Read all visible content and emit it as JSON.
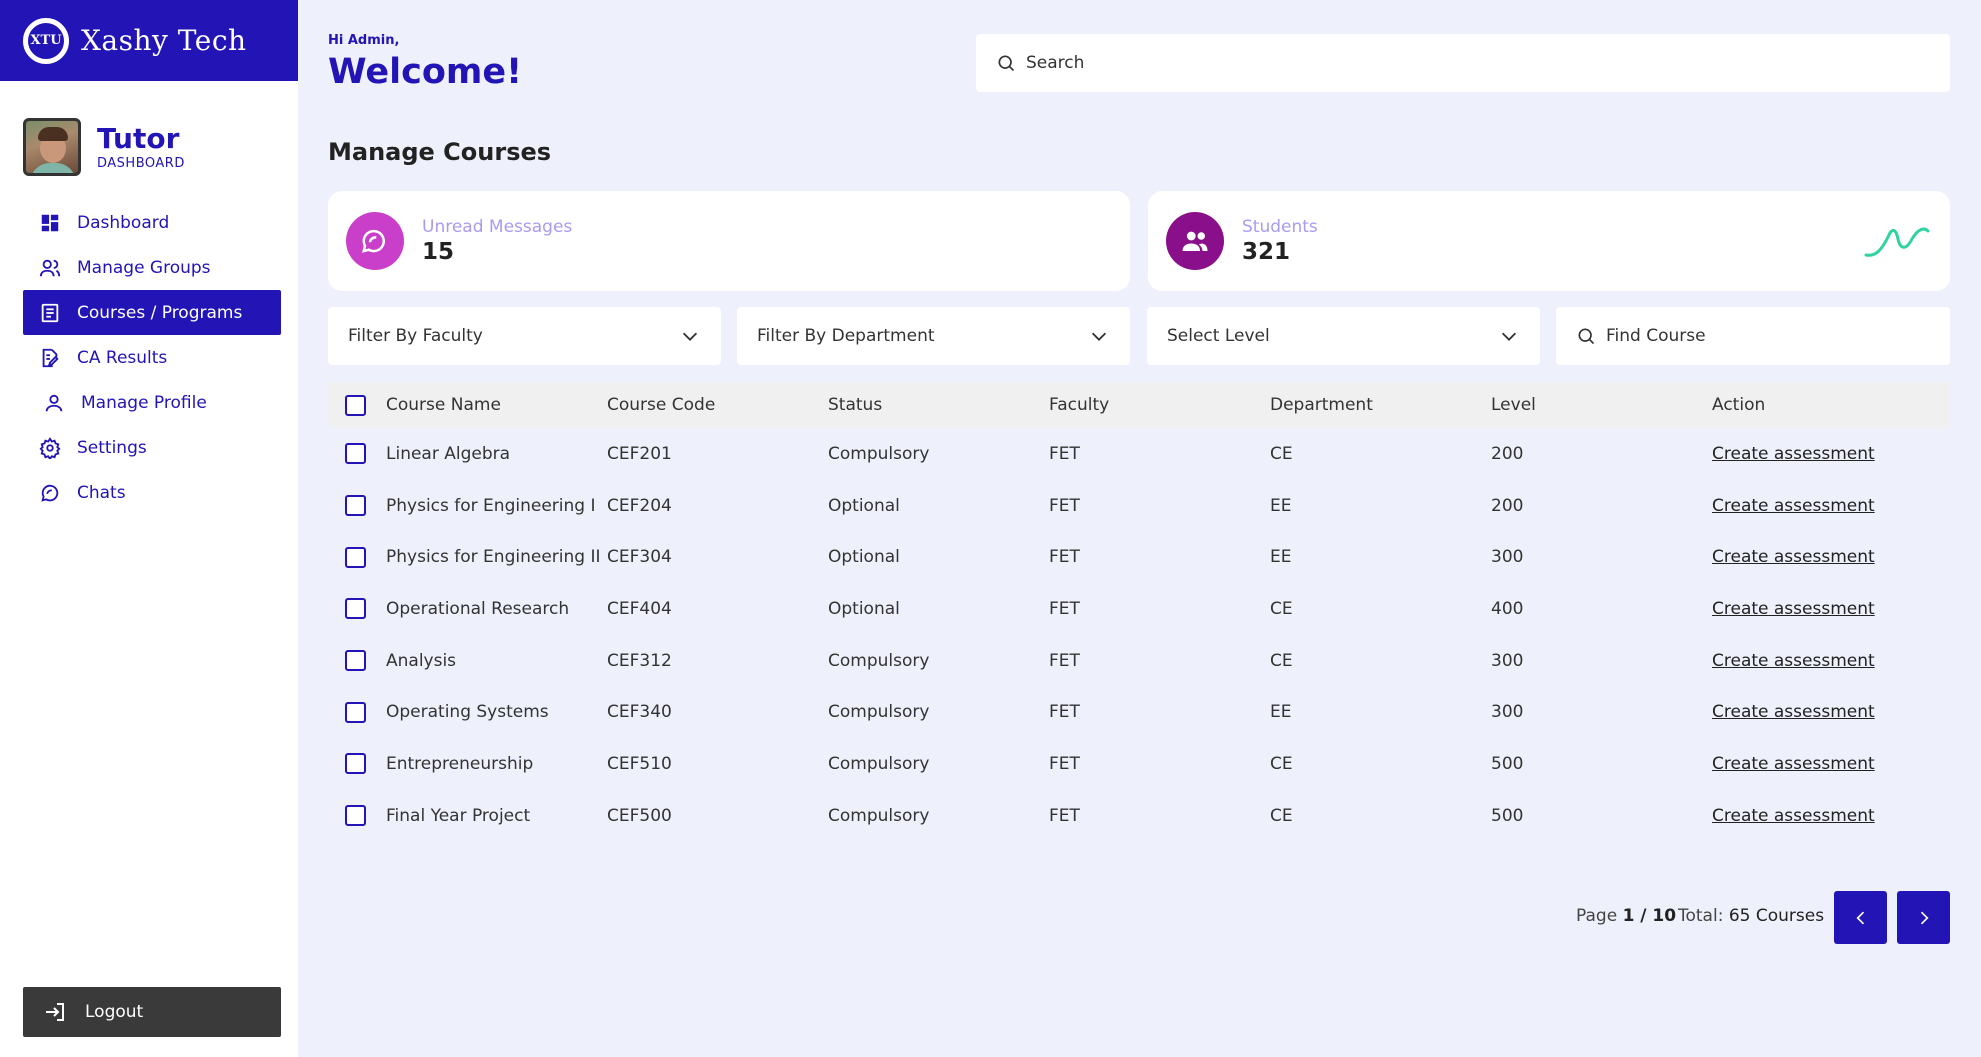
{
  "brand": {
    "name": "Xashy Tech",
    "logo_text": "XTU"
  },
  "profile": {
    "title": "Tutor",
    "subtitle": "DASHBOARD"
  },
  "nav": {
    "items": [
      {
        "label": "Dashboard",
        "icon": "dashboard-icon",
        "active": false
      },
      {
        "label": "Manage Groups",
        "icon": "users-icon",
        "active": false
      },
      {
        "label": "Courses / Programs",
        "icon": "document-icon",
        "active": true
      },
      {
        "label": "CA Results",
        "icon": "edit-document-icon",
        "active": false
      },
      {
        "label": "Manage Profile",
        "icon": "user-icon",
        "active": false
      },
      {
        "label": "Settings",
        "icon": "gear-icon",
        "active": false
      },
      {
        "label": "Chats",
        "icon": "chat-icon",
        "active": false
      }
    ]
  },
  "logout": {
    "label": "Logout"
  },
  "header": {
    "greeting": "Hi Admin,",
    "welcome": "Welcome!"
  },
  "search": {
    "placeholder": "Search"
  },
  "page": {
    "title": "Manage Courses"
  },
  "stats": {
    "messages": {
      "label": "Unread Messages",
      "value": "15",
      "color": "#c93fc9"
    },
    "students": {
      "label": "Students",
      "value": "321",
      "color": "#8a0f8a"
    }
  },
  "filters": {
    "faculty": "Filter By Faculty",
    "department": "Filter By Department",
    "level": "Select Level",
    "find": "Find Course"
  },
  "table": {
    "headers": [
      "Course Name",
      "Course Code",
      "Status",
      "Faculty",
      "Department",
      "Level",
      "Action"
    ],
    "rows": [
      [
        "Linear Algebra",
        "CEF201",
        "Compulsory",
        "FET",
        "CE",
        "200",
        "Create assessment"
      ],
      [
        "Physics for Engineering I",
        "CEF204",
        "Optional",
        "FET",
        "EE",
        "200",
        "Create assessment"
      ],
      [
        "Physics for Engineering II",
        "CEF304",
        "Optional",
        "FET",
        "EE",
        "300",
        "Create assessment"
      ],
      [
        "Operational Research",
        "CEF404",
        "Optional",
        "FET",
        "CE",
        "400",
        "Create assessment"
      ],
      [
        "Analysis",
        "CEF312",
        "Compulsory",
        "FET",
        "CE",
        "300",
        "Create assessment"
      ],
      [
        "Operating Systems",
        "CEF340",
        "Compulsory",
        "FET",
        "EE",
        "300",
        "Create assessment"
      ],
      [
        "Entrepreneurship",
        "CEF510",
        "Compulsory",
        "FET",
        "CE",
        "500",
        "Create assessment"
      ],
      [
        "Final Year Project",
        "CEF500",
        "Compulsory",
        "FET",
        "CE",
        "500",
        "Create assessment"
      ]
    ]
  },
  "pagination": {
    "page_label": "Page",
    "page_value": "1 / 10",
    "total_label": "Total:",
    "total_value": "65 Courses"
  },
  "colors": {
    "primary": "#2214b5",
    "background": "#eef1fb",
    "sparkline": "#2ed3a0"
  }
}
